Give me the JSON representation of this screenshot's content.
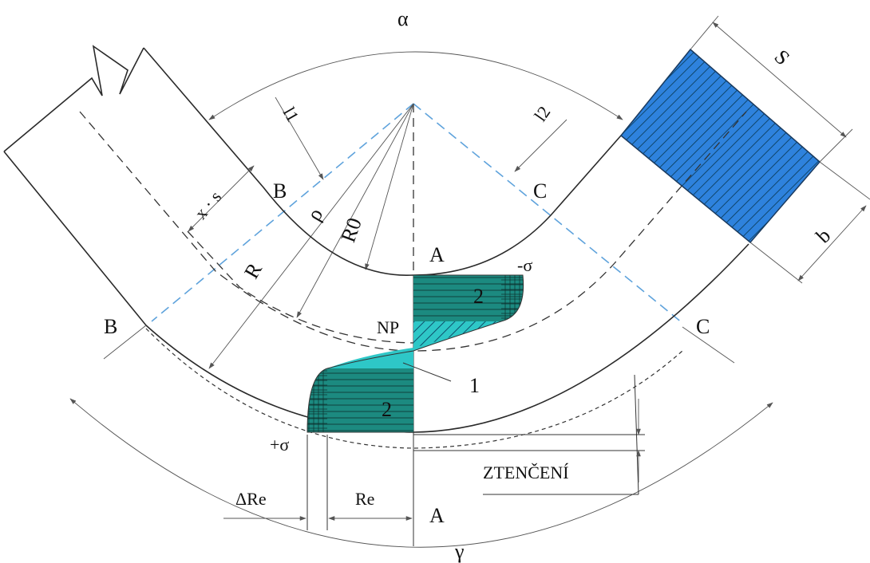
{
  "labels": {
    "alpha": "α",
    "gamma": "γ",
    "s": "S",
    "b": "b",
    "l1": "l1",
    "l2": "l2",
    "x_s": "x · s",
    "rho": "ρ",
    "r0": "R0",
    "r": "R",
    "b_top": "B",
    "b_bottom": "B",
    "c_top": "C",
    "c_bottom": "C",
    "a_top": "A",
    "a_bottom": "A",
    "minus_sigma": "-σ",
    "plus_sigma": "+σ",
    "np": "NP",
    "zone_1": "1",
    "zone_2_top": "2",
    "zone_2_bottom": "2",
    "delta_re": "ΔRe",
    "re": "Re",
    "thinning": "ZTENČENÍ"
  },
  "colors": {
    "strip_section": "#2e82dd",
    "stress_dark": "#1c8a80",
    "stress_light": "#2ec7c7",
    "dashed_axis": "#5fa3dc"
  }
}
